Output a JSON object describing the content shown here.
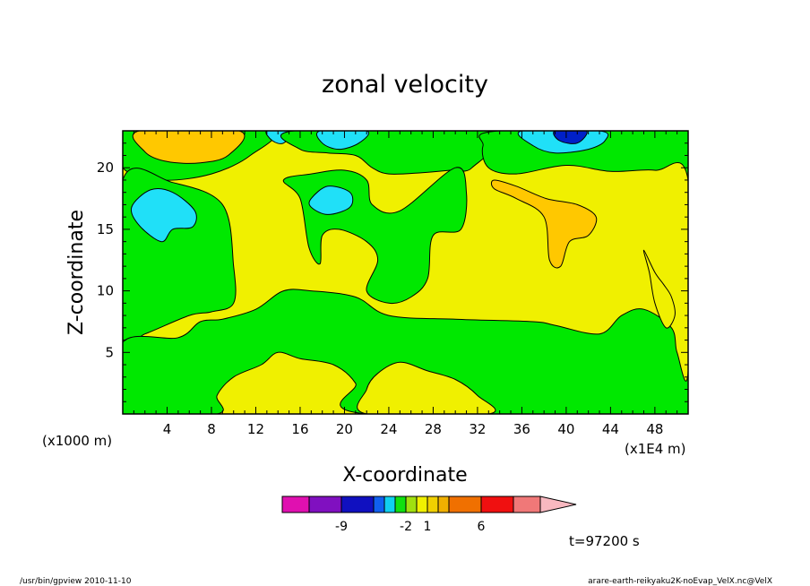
{
  "chart_data": {
    "type": "contour",
    "title": "zonal velocity",
    "xlabel": "X-coordinate",
    "ylabel": "Z-coordinate",
    "x_units_left": "(x1000 m)",
    "x_units_right": "(x1E4 m)",
    "time_label": "t=97200 s",
    "xlim": [
      0,
      51
    ],
    "ylim": [
      0,
      23
    ],
    "x_ticks": [
      4,
      8,
      12,
      16,
      20,
      24,
      28,
      32,
      36,
      40,
      44,
      48
    ],
    "y_ticks": [
      5,
      10,
      15,
      20
    ],
    "colorbar": {
      "colors": [
        "#e010b0",
        "#8010c0",
        "#1010c0",
        "#1060f0",
        "#10d0f0",
        "#10e010",
        "#a0e010",
        "#f0f000",
        "#f0d000",
        "#f0b000",
        "#f07000",
        "#f01010",
        "#f07878",
        "#f8b8c0"
      ],
      "labels": [
        {
          "text": "-9",
          "index": 1
        },
        {
          "text": "-2",
          "index": 5
        },
        {
          "text": "1",
          "index": 7
        },
        {
          "text": "6",
          "index": 10
        }
      ]
    },
    "regions": [
      {
        "color": "#00e800",
        "polygon": [
          [
            0,
            20
          ],
          [
            3.5,
            19
          ],
          [
            8,
            19.5
          ],
          [
            11.5,
            21
          ],
          [
            13,
            23
          ],
          [
            0,
            23
          ]
        ]
      },
      {
        "color": "#ffc800",
        "polygon": [
          [
            1.5,
            23
          ],
          [
            2,
            21.3
          ],
          [
            4,
            20.5
          ],
          [
            7,
            20.4
          ],
          [
            9.5,
            21
          ],
          [
            10.5,
            23
          ]
        ]
      },
      {
        "color": "#00e800",
        "polygon": [
          [
            0,
            19
          ],
          [
            4.5,
            18.8
          ],
          [
            9,
            17
          ],
          [
            10,
            12
          ],
          [
            10,
            9
          ],
          [
            8,
            8.3
          ],
          [
            6,
            8
          ],
          [
            2,
            6.5
          ],
          [
            0,
            6
          ]
        ]
      },
      {
        "color": "#20e0f8",
        "polygon": [
          [
            0.8,
            16.8
          ],
          [
            2.5,
            18.2
          ],
          [
            4.5,
            18
          ],
          [
            6.5,
            16.5
          ],
          [
            6.3,
            15.2
          ],
          [
            4.5,
            15
          ],
          [
            3.5,
            14
          ],
          [
            1.5,
            15.3
          ]
        ]
      },
      {
        "color": "#20e0f8",
        "polygon": [
          [
            13,
            23
          ],
          [
            13.5,
            22.2
          ],
          [
            14.5,
            22
          ],
          [
            15.2,
            23
          ]
        ]
      },
      {
        "color": "#00e800",
        "polygon": [
          [
            15.5,
            23
          ],
          [
            16,
            21.5
          ],
          [
            18.5,
            21.2
          ],
          [
            21,
            21
          ],
          [
            22.5,
            20
          ],
          [
            24,
            19.5
          ],
          [
            27,
            19.6
          ],
          [
            29.5,
            19.8
          ],
          [
            31.5,
            20
          ],
          [
            33,
            23
          ]
        ]
      },
      {
        "color": "#00e800",
        "polygon": [
          [
            14.5,
            19
          ],
          [
            16,
            17.5
          ],
          [
            16.8,
            13.5
          ],
          [
            17.8,
            12.2
          ],
          [
            18,
            14.5
          ],
          [
            19.5,
            15
          ],
          [
            22,
            14
          ],
          [
            23,
            12.5
          ],
          [
            22,
            10
          ],
          [
            24,
            9
          ],
          [
            26,
            9.5
          ],
          [
            27.5,
            11
          ],
          [
            28,
            14.5
          ],
          [
            30.5,
            15
          ],
          [
            31,
            18
          ],
          [
            30,
            20
          ],
          [
            25,
            16.5
          ],
          [
            22.5,
            17
          ],
          [
            22,
            19
          ],
          [
            20,
            19.8
          ],
          [
            17,
            19.5
          ]
        ]
      },
      {
        "color": "#20e0f8",
        "polygon": [
          [
            17,
            17.5
          ],
          [
            18.5,
            18.5
          ],
          [
            20.5,
            18
          ],
          [
            20.5,
            16.8
          ],
          [
            18.5,
            16.2
          ],
          [
            17,
            16.8
          ]
        ]
      },
      {
        "color": "#20e0f8",
        "polygon": [
          [
            17.8,
            23
          ],
          [
            18,
            22
          ],
          [
            19.5,
            21.5
          ],
          [
            21.3,
            22
          ],
          [
            22,
            23
          ]
        ]
      },
      {
        "color": "#00e800",
        "polygon": [
          [
            34,
            23
          ],
          [
            32.5,
            21.8
          ],
          [
            33,
            20
          ],
          [
            35.5,
            19.5
          ],
          [
            40,
            20.2
          ],
          [
            44,
            19.7
          ],
          [
            48,
            19.8
          ],
          [
            51,
            19
          ],
          [
            51,
            3.5
          ],
          [
            50,
            5
          ],
          [
            49.5,
            7
          ],
          [
            47,
            8.5
          ],
          [
            45,
            8
          ],
          [
            43,
            6.5
          ],
          [
            39,
            7.2
          ],
          [
            37,
            7.5
          ],
          [
            30,
            7.7
          ],
          [
            24,
            8
          ],
          [
            21,
            9.5
          ],
          [
            17,
            10
          ],
          [
            14.5,
            10
          ],
          [
            12,
            8.5
          ],
          [
            9,
            7.7
          ],
          [
            7,
            7.5
          ],
          [
            5,
            6.2
          ],
          [
            0,
            5.8
          ],
          [
            0,
            0
          ],
          [
            8.5,
            0
          ],
          [
            8.5,
            1.5
          ],
          [
            10,
            3
          ],
          [
            12.5,
            4
          ],
          [
            14,
            5
          ],
          [
            16,
            4.5
          ],
          [
            19,
            4
          ],
          [
            21,
            2.5
          ],
          [
            22,
            0
          ],
          [
            51,
            0
          ],
          [
            51,
            23
          ]
        ]
      },
      {
        "color": "#f0f000",
        "polygon": [
          [
            22,
            2
          ],
          [
            23,
            3.3
          ],
          [
            25,
            4.2
          ],
          [
            27.5,
            3.5
          ],
          [
            30,
            2.8
          ],
          [
            32,
            1.5
          ],
          [
            33,
            0
          ],
          [
            22,
            0
          ]
        ]
      },
      {
        "color": "#20e0f8",
        "polygon": [
          [
            36,
            23
          ],
          [
            37,
            21.8
          ],
          [
            39,
            21.2
          ],
          [
            42,
            21.5
          ],
          [
            43.5,
            22.2
          ],
          [
            43,
            23
          ]
        ]
      },
      {
        "color": "#0020c8",
        "polygon": [
          [
            39,
            23
          ],
          [
            39.4,
            22.2
          ],
          [
            41,
            22
          ],
          [
            41.8,
            23
          ]
        ]
      },
      {
        "color": "#ffc800",
        "polygon": [
          [
            33.5,
            19
          ],
          [
            35.5,
            18.5
          ],
          [
            38.2,
            17.5
          ],
          [
            41,
            17
          ],
          [
            42.7,
            16
          ],
          [
            42,
            14.5
          ],
          [
            40.3,
            14
          ],
          [
            39.5,
            12
          ],
          [
            38.5,
            12.5
          ],
          [
            38,
            16
          ],
          [
            35.5,
            17.5
          ],
          [
            33.5,
            18.3
          ]
        ]
      },
      {
        "color": "#f0f000",
        "polygon": [
          [
            47,
            13.3
          ],
          [
            48,
            11.5
          ],
          [
            48.8,
            10.5
          ],
          [
            49.5,
            9.5
          ],
          [
            49.8,
            8
          ],
          [
            49,
            7
          ],
          [
            48,
            9
          ],
          [
            47.5,
            11.5
          ]
        ]
      }
    ]
  },
  "footer": {
    "left": "/usr/bin/gpview   2010-11-10",
    "right": "arare-earth-reikyaku2K-noEvap_VelX.nc@VelX"
  }
}
